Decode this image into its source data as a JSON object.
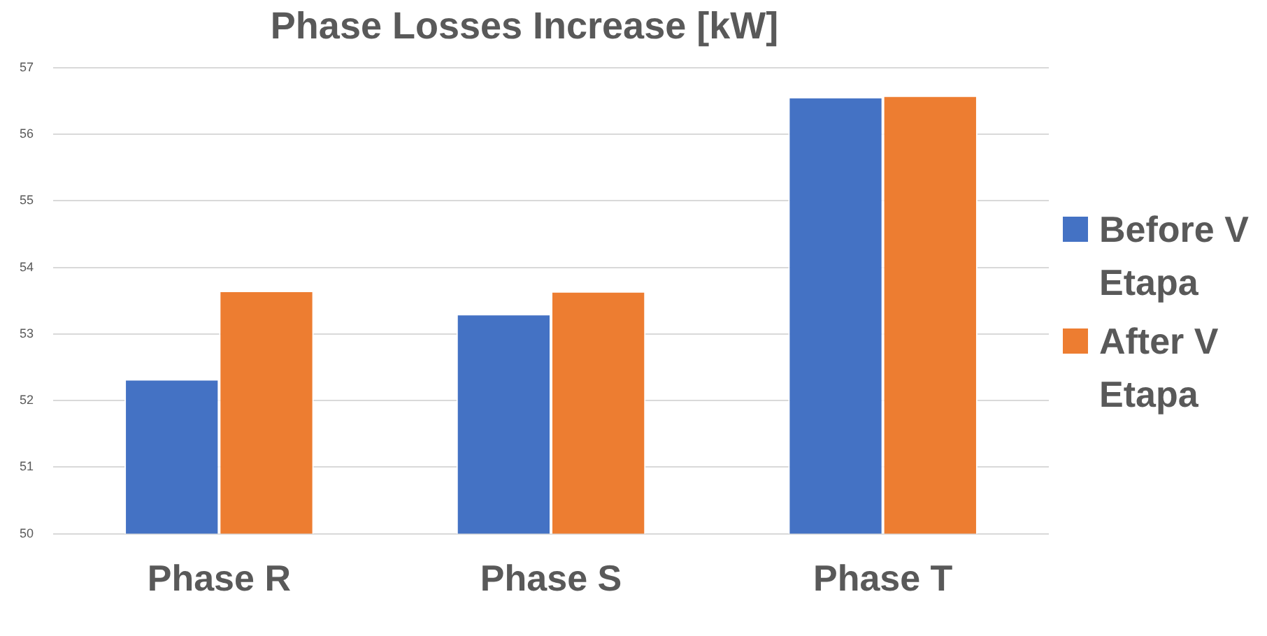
{
  "chart_data": {
    "type": "bar",
    "title": "Phase Losses Increase [kW]",
    "categories": [
      "Phase R",
      "Phase S",
      "Phase T"
    ],
    "series": [
      {
        "name": "Before V Etapa",
        "color": "#4472c4",
        "values": [
          52.32,
          53.3,
          56.56
        ]
      },
      {
        "name": "After V Etapa",
        "color": "#ed7d31",
        "values": [
          53.65,
          53.64,
          56.58
        ]
      }
    ],
    "ylim": [
      50,
      57
    ],
    "yticks": [
      50,
      51,
      52,
      53,
      54,
      55,
      56,
      57
    ],
    "grid": "y",
    "legend": "right"
  }
}
